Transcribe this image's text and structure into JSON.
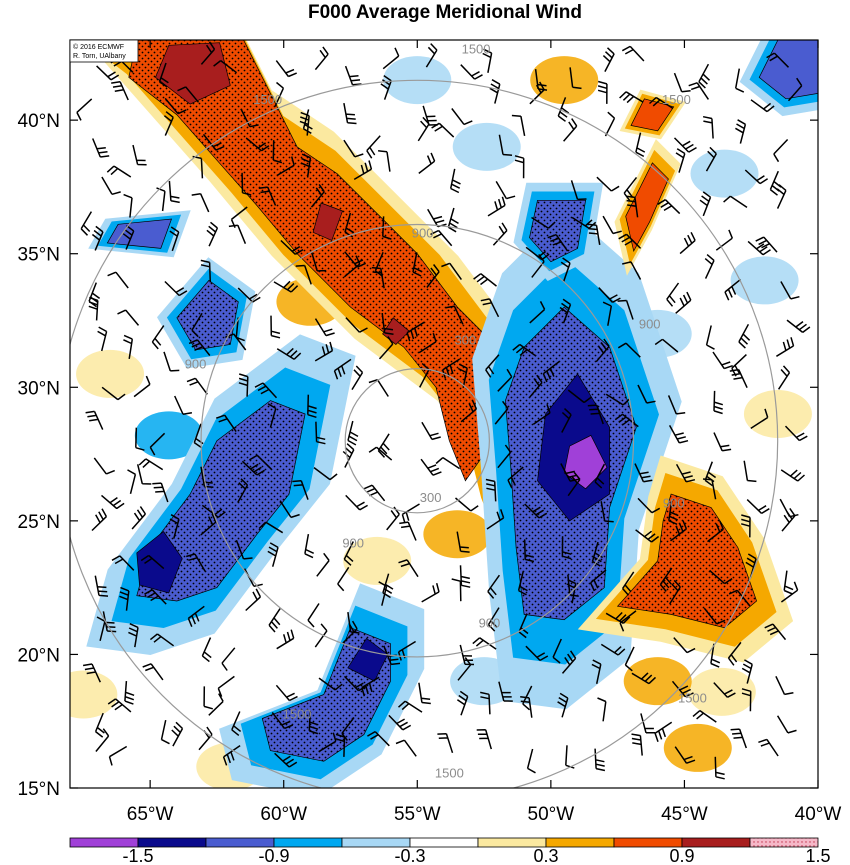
{
  "chart_data": {
    "type": "heatmap",
    "title": "F000 Average Meridional Wind",
    "credit": [
      "© 2016 ECMWF",
      "R. Torn, UAlbany"
    ],
    "xlim": [
      -68,
      -40
    ],
    "ylim": [
      15,
      43
    ],
    "x_ticks": [
      {
        "value": -65,
        "label": "65°W"
      },
      {
        "value": -60,
        "label": "60°W"
      },
      {
        "value": -55,
        "label": "55°W"
      },
      {
        "value": -50,
        "label": "50°W"
      },
      {
        "value": -45,
        "label": "45°W"
      },
      {
        "value": -40,
        "label": "40°W"
      }
    ],
    "y_ticks": [
      {
        "value": 40,
        "label": "40°N"
      },
      {
        "value": 35,
        "label": "35°N"
      },
      {
        "value": 30,
        "label": "30°N"
      },
      {
        "value": 25,
        "label": "25°N"
      },
      {
        "value": 20,
        "label": "20°N"
      },
      {
        "value": 15,
        "label": "15°N"
      }
    ],
    "colorbar": {
      "colors": [
        "#a040d8",
        "#0a0a8c",
        "#4a5cd0",
        "#00a8f0",
        "#a8d8f5",
        "#ffffff",
        "#fbe9a0",
        "#f5a800",
        "#f04b00",
        "#a81e1e",
        "#f2b7c5"
      ],
      "tick_labels": [
        "-1.5",
        "",
        "-0.9",
        "",
        "-0.3",
        "",
        "0.3",
        "",
        "0.9",
        "",
        "1.5"
      ]
    },
    "rings": {
      "center": {
        "lon": -55,
        "lat": 28
      },
      "radii_km": [
        300,
        900,
        1500
      ],
      "labels": [
        {
          "text": "300",
          "lon": -53.2,
          "lat": 31.6
        },
        {
          "text": "300",
          "lon": -54.5,
          "lat": 25.7
        },
        {
          "text": "900",
          "lon": -54.8,
          "lat": 35.6
        },
        {
          "text": "900",
          "lon": -46.3,
          "lat": 32.2
        },
        {
          "text": "900",
          "lon": -63.3,
          "lat": 30.7
        },
        {
          "text": "900",
          "lon": -57.4,
          "lat": 24.0
        },
        {
          "text": "900",
          "lon": -52.3,
          "lat": 21.0
        },
        {
          "text": "900",
          "lon": -45.4,
          "lat": 25.5
        },
        {
          "text": "1500",
          "lon": -52.8,
          "lat": 42.5
        },
        {
          "text": "1500",
          "lon": -60.6,
          "lat": 40.6
        },
        {
          "text": "1500",
          "lon": -45.3,
          "lat": 40.6
        },
        {
          "text": "1500",
          "lon": -59.5,
          "lat": 17.6
        },
        {
          "text": "1500",
          "lon": -44.7,
          "lat": 18.2
        },
        {
          "text": "1500",
          "lon": -53.8,
          "lat": 15.4
        }
      ]
    },
    "features": [
      {
        "name": "ridge-northwest",
        "level": 8,
        "stipple": true,
        "points": [
          [
            -65.5,
            43
          ],
          [
            -61.5,
            43
          ],
          [
            -60.5,
            41
          ],
          [
            -59.5,
            39
          ],
          [
            -58,
            38
          ],
          [
            -56.5,
            36.5
          ],
          [
            -55,
            35
          ],
          [
            -53.5,
            33
          ],
          [
            -52,
            31.5
          ],
          [
            -51.8,
            29.5
          ],
          [
            -52.5,
            27.5
          ],
          [
            -53.2,
            26.5
          ],
          [
            -53.8,
            28
          ],
          [
            -54.3,
            30
          ],
          [
            -55.5,
            31.5
          ],
          [
            -57.5,
            33
          ],
          [
            -59.5,
            35
          ],
          [
            -61,
            36.8
          ],
          [
            -62.5,
            38.5
          ],
          [
            -64,
            40.2
          ],
          [
            -65.8,
            41.6
          ]
        ]
      },
      {
        "name": "ridge-northwest-core",
        "level": 9,
        "points": [
          [
            -64.3,
            42.8
          ],
          [
            -62.4,
            42.9
          ],
          [
            -62,
            41.3
          ],
          [
            -63.5,
            40.6
          ],
          [
            -64.8,
            41.6
          ]
        ]
      },
      {
        "name": "ridge-northwest-core-2",
        "level": 9,
        "points": [
          [
            -58.6,
            36.9
          ],
          [
            -57.8,
            36.6
          ],
          [
            -58.2,
            35.5
          ],
          [
            -58.9,
            35.8
          ]
        ]
      },
      {
        "name": "ridge-northwest-core-3",
        "level": 9,
        "points": [
          [
            -55.9,
            32.6
          ],
          [
            -55.3,
            32.1
          ],
          [
            -55.8,
            31.6
          ],
          [
            -56.3,
            32
          ]
        ]
      },
      {
        "name": "trough-center",
        "level": 2,
        "stipple": true,
        "points": [
          [
            -49.5,
            33
          ],
          [
            -47.8,
            31.5
          ],
          [
            -46.8,
            28.5
          ],
          [
            -47.8,
            25.5
          ],
          [
            -48,
            22.5
          ],
          [
            -49.5,
            21.3
          ],
          [
            -51,
            21.5
          ],
          [
            -51.3,
            24
          ],
          [
            -51.5,
            27
          ],
          [
            -51.7,
            29.5
          ],
          [
            -51,
            31.5
          ]
        ]
      },
      {
        "name": "trough-center-core",
        "level": 1,
        "points": [
          [
            -49,
            30.5
          ],
          [
            -47.8,
            28.5
          ],
          [
            -47.8,
            26
          ],
          [
            -49.3,
            25
          ],
          [
            -50.5,
            26.5
          ],
          [
            -50.2,
            29
          ]
        ]
      },
      {
        "name": "trough-center-core-2",
        "level": 0,
        "points": [
          [
            -48.5,
            28.2
          ],
          [
            -47.9,
            27
          ],
          [
            -48.7,
            26.2
          ],
          [
            -49.5,
            26.8
          ],
          [
            -49.3,
            27.8
          ]
        ]
      },
      {
        "name": "ridge-southeast",
        "level": 8,
        "stipple": true,
        "points": [
          [
            -45.5,
            26
          ],
          [
            -44,
            25.5
          ],
          [
            -43,
            24
          ],
          [
            -42.3,
            22
          ],
          [
            -43.5,
            21
          ],
          [
            -45.5,
            21.5
          ],
          [
            -47.5,
            21.8
          ],
          [
            -46,
            23.5
          ],
          [
            -45.8,
            25
          ]
        ]
      },
      {
        "name": "ridge-east-streak",
        "level": 8,
        "points": [
          [
            -46.2,
            38.4
          ],
          [
            -45.6,
            37.8
          ],
          [
            -46.3,
            36.2
          ],
          [
            -46.9,
            35.1
          ],
          [
            -47.2,
            36.4
          ]
        ]
      },
      {
        "name": "trough-southwest",
        "level": 2,
        "stipple": true,
        "points": [
          [
            -60.5,
            29.5
          ],
          [
            -59.2,
            29
          ],
          [
            -59.8,
            26
          ],
          [
            -61,
            24.5
          ],
          [
            -62.5,
            22.5
          ],
          [
            -64,
            22
          ],
          [
            -65.5,
            22.2
          ],
          [
            -65,
            24
          ],
          [
            -63.5,
            26
          ],
          [
            -62.5,
            28
          ]
        ]
      },
      {
        "name": "trough-southwest-core",
        "level": 1,
        "points": [
          [
            -64.5,
            24.6
          ],
          [
            -63.8,
            23.6
          ],
          [
            -64.3,
            22.3
          ],
          [
            -65.4,
            22.6
          ],
          [
            -65.5,
            23.8
          ]
        ]
      },
      {
        "name": "trough-west",
        "level": 2,
        "stipple": true,
        "points": [
          [
            -62.8,
            34
          ],
          [
            -61.7,
            33.2
          ],
          [
            -62,
            31.6
          ],
          [
            -63.3,
            31.4
          ],
          [
            -64,
            32.6
          ]
        ]
      },
      {
        "name": "trough-northwest-small",
        "level": 2,
        "points": [
          [
            -66.2,
            36.1
          ],
          [
            -64.2,
            36.3
          ],
          [
            -64.6,
            35.2
          ],
          [
            -66.6,
            35.4
          ]
        ]
      },
      {
        "name": "trough-south",
        "level": 2,
        "stipple": true,
        "points": [
          [
            -57.5,
            21
          ],
          [
            -56,
            20.4
          ],
          [
            -56,
            19
          ],
          [
            -57,
            17
          ],
          [
            -58.5,
            16
          ],
          [
            -60.5,
            16.4
          ],
          [
            -60.8,
            17.6
          ],
          [
            -58.5,
            18.5
          ]
        ]
      },
      {
        "name": "trough-south-core",
        "level": 1,
        "points": [
          [
            -56.9,
            20.6
          ],
          [
            -56.1,
            20
          ],
          [
            -56.6,
            19
          ],
          [
            -57.6,
            19.5
          ]
        ]
      },
      {
        "name": "trough-north",
        "level": 2,
        "stipple": true,
        "points": [
          [
            -50.5,
            37
          ],
          [
            -48.7,
            37
          ],
          [
            -49,
            35.2
          ],
          [
            -50,
            34.7
          ],
          [
            -50.8,
            35.6
          ]
        ]
      },
      {
        "name": "trough-northeast",
        "level": 2,
        "points": [
          [
            -41.5,
            43
          ],
          [
            -40,
            43
          ],
          [
            -40,
            41
          ],
          [
            -41.2,
            40.8
          ],
          [
            -42.2,
            41.6
          ]
        ]
      },
      {
        "name": "ridge-northeast-small",
        "level": 8,
        "points": [
          [
            -46.5,
            40.8
          ],
          [
            -45.4,
            40.5
          ],
          [
            -46,
            39.6
          ],
          [
            -47,
            39.8
          ]
        ]
      }
    ]
  }
}
